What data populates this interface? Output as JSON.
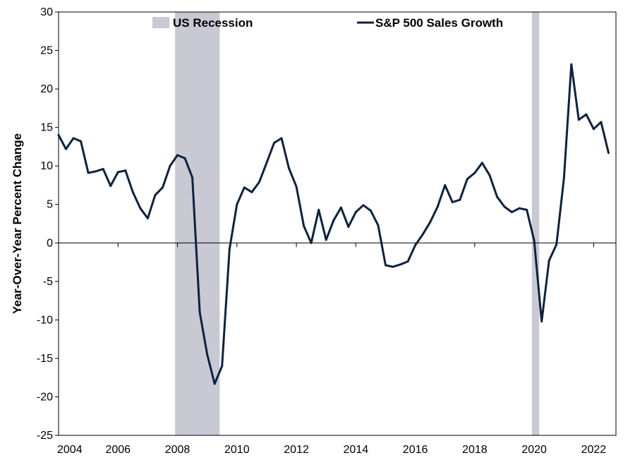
{
  "chart_data": {
    "type": "line",
    "title": "",
    "xlabel": "",
    "ylabel": "Year-Over-Year Percent Change",
    "xlim": [
      2004,
      2022.75
    ],
    "ylim": [
      -25,
      30
    ],
    "x_ticks": [
      "2004",
      "2006",
      "2008",
      "2010",
      "2012",
      "2014",
      "2016",
      "2018",
      "2020",
      "2022"
    ],
    "y_ticks": [
      "30",
      "25",
      "20",
      "15",
      "10",
      "5",
      "0",
      "-5",
      "-10",
      "-15",
      "-20",
      "-25"
    ],
    "grid": false,
    "legend_position": "top",
    "legend": {
      "recession_label": "US Recession",
      "series_label": "S&P 500 Sales Growth"
    },
    "colors": {
      "line": "#0d2240",
      "recession": "#c9c9d4",
      "axis": "#000000"
    },
    "recessions": [
      {
        "start": 2007.92,
        "end": 2009.42
      },
      {
        "start": 2019.92,
        "end": 2020.17
      }
    ],
    "series": [
      {
        "name": "S&P 500 Sales Growth",
        "x": [
          2004.0,
          2004.25,
          2004.5,
          2004.75,
          2005.0,
          2005.25,
          2005.5,
          2005.75,
          2006.0,
          2006.25,
          2006.5,
          2006.75,
          2007.0,
          2007.25,
          2007.5,
          2007.75,
          2008.0,
          2008.25,
          2008.5,
          2008.75,
          2009.0,
          2009.25,
          2009.5,
          2009.75,
          2010.0,
          2010.25,
          2010.5,
          2010.75,
          2011.0,
          2011.25,
          2011.5,
          2011.75,
          2012.0,
          2012.25,
          2012.5,
          2012.75,
          2013.0,
          2013.25,
          2013.5,
          2013.75,
          2014.0,
          2014.25,
          2014.5,
          2014.75,
          2015.0,
          2015.25,
          2015.5,
          2015.75,
          2016.0,
          2016.25,
          2016.5,
          2016.75,
          2017.0,
          2017.25,
          2017.5,
          2017.75,
          2018.0,
          2018.25,
          2018.5,
          2018.75,
          2019.0,
          2019.25,
          2019.5,
          2019.75,
          2020.0,
          2020.25,
          2020.5,
          2020.75,
          2021.0,
          2021.25,
          2021.5,
          2021.75,
          2022.0,
          2022.25,
          2022.5
        ],
        "values": [
          14.0,
          12.2,
          13.6,
          13.2,
          9.1,
          9.3,
          9.6,
          7.4,
          9.2,
          9.4,
          6.6,
          4.5,
          3.2,
          6.2,
          7.2,
          10.0,
          11.4,
          11.0,
          8.5,
          -9.0,
          -14.5,
          -18.3,
          -16.0,
          -0.8,
          5.0,
          7.2,
          6.6,
          7.9,
          10.4,
          13.0,
          13.6,
          9.7,
          7.3,
          2.2,
          0.0,
          4.3,
          0.4,
          2.9,
          4.6,
          2.1,
          4.0,
          4.9,
          4.2,
          2.3,
          -2.9,
          -3.1,
          -2.8,
          -2.4,
          -0.3,
          1.1,
          2.7,
          4.7,
          7.5,
          5.3,
          5.6,
          8.3,
          9.1,
          10.4,
          8.8,
          6.0,
          4.7,
          4.0,
          4.5,
          4.3,
          0.3,
          -10.2,
          -2.3,
          -0.2,
          8.4,
          23.2,
          16.0,
          16.7,
          14.8,
          15.7,
          11.7
        ]
      }
    ]
  }
}
